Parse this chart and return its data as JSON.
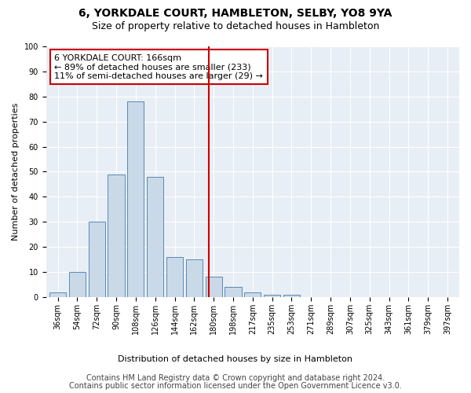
{
  "title": "6, YORKDALE COURT, HAMBLETON, SELBY, YO8 9YA",
  "subtitle": "Size of property relative to detached houses in Hambleton",
  "xlabel": "Distribution of detached houses by size in Hambleton",
  "ylabel": "Number of detached properties",
  "bar_color": "#c9d9e8",
  "bar_edge_color": "#5a8ab5",
  "bg_color": "#e8eef5",
  "categories": [
    "36sqm",
    "54sqm",
    "72sqm",
    "90sqm",
    "108sqm",
    "126sqm",
    "144sqm",
    "162sqm",
    "180sqm",
    "198sqm",
    "217sqm",
    "235sqm",
    "253sqm",
    "271sqm",
    "289sqm",
    "307sqm",
    "325sqm",
    "343sqm",
    "361sqm",
    "379sqm",
    "397sqm"
  ],
  "values": [
    2,
    10,
    30,
    49,
    78,
    48,
    16,
    15,
    8,
    4,
    2,
    1,
    1,
    0,
    0,
    0,
    0,
    0,
    0,
    0,
    0
  ],
  "ylim": [
    0,
    100
  ],
  "yticks": [
    0,
    10,
    20,
    30,
    40,
    50,
    60,
    70,
    80,
    90,
    100
  ],
  "vline_x_index": 7.75,
  "vline_color": "#cc0000",
  "annotation_text": "6 YORKDALE COURT: 166sqm\n← 89% of detached houses are smaller (233)\n11% of semi-detached houses are larger (29) →",
  "annotation_box_color": "#cc0000",
  "footer1": "Contains HM Land Registry data © Crown copyright and database right 2024.",
  "footer2": "Contains public sector information licensed under the Open Government Licence v3.0.",
  "title_fontsize": 10,
  "subtitle_fontsize": 9,
  "axis_label_fontsize": 8,
  "tick_fontsize": 7,
  "annotation_fontsize": 8,
  "footer_fontsize": 7
}
